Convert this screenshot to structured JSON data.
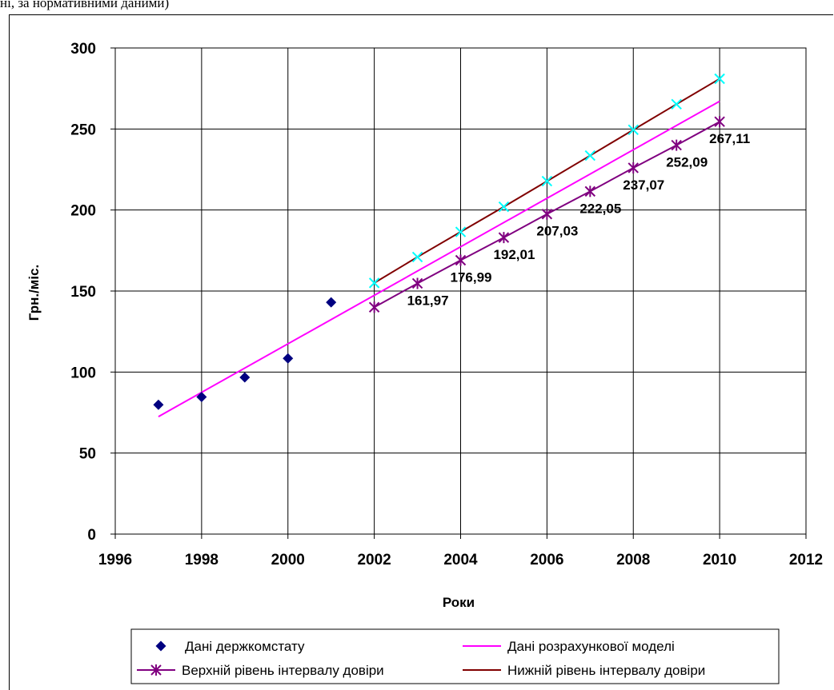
{
  "page": {
    "top_fragment": "ні, за нормативними даними)"
  },
  "chart_data": {
    "type": "scatter",
    "title": "",
    "xlabel": "Роки",
    "ylabel": "Грн./міс.",
    "xlim": [
      1996,
      2012
    ],
    "ylim": [
      0,
      300
    ],
    "xticks": [
      1996,
      1998,
      2000,
      2002,
      2004,
      2006,
      2008,
      2010,
      2012
    ],
    "yticks": [
      0,
      50,
      100,
      150,
      200,
      250,
      300
    ],
    "grid": true,
    "legend_position": "bottom",
    "colors": {
      "derzhkomstat": "#000080",
      "model": "#ff00ff",
      "upper": "#800080",
      "lower": "#800000",
      "lower_markers": "#00ffff"
    },
    "series": [
      {
        "name": "Дані держкомстату",
        "style": "diamond-markers",
        "x": [
          1997,
          1998,
          1999,
          2000,
          2001
        ],
        "y": [
          79.8,
          84.6,
          96.7,
          108.4,
          143.0
        ]
      },
      {
        "name": "Дані розрахункової моделі",
        "style": "line",
        "x": [
          1997,
          2010
        ],
        "y": [
          72.5,
          267.11
        ]
      },
      {
        "name": "Верхній рівень інтервалу довіри",
        "style": "line-star-markers",
        "x": [
          2002,
          2003,
          2004,
          2005,
          2006,
          2007,
          2008,
          2009,
          2010
        ],
        "y": [
          140,
          154.7,
          169,
          183,
          197.5,
          211.5,
          226,
          240,
          254.5
        ]
      },
      {
        "name": "Нижній рівень інтервалу довіри",
        "style": "line-x-markers",
        "x": [
          2002,
          2003,
          2004,
          2005,
          2006,
          2007,
          2008,
          2009,
          2010
        ],
        "y": [
          155,
          171,
          186.5,
          202,
          217.8,
          233.6,
          249.5,
          265.3,
          281
        ]
      }
    ],
    "data_labels": [
      {
        "x": 2003,
        "y": 154.7,
        "text": "161,97"
      },
      {
        "x": 2004,
        "y": 169,
        "text": "176,99"
      },
      {
        "x": 2005,
        "y": 183,
        "text": "192,01"
      },
      {
        "x": 2006,
        "y": 197.5,
        "text": "207,03"
      },
      {
        "x": 2007,
        "y": 211.5,
        "text": "222,05"
      },
      {
        "x": 2008,
        "y": 226,
        "text": "237,07"
      },
      {
        "x": 2009,
        "y": 240,
        "text": "252,09"
      },
      {
        "x": 2010,
        "y": 254.5,
        "text": "267,11"
      }
    ]
  }
}
